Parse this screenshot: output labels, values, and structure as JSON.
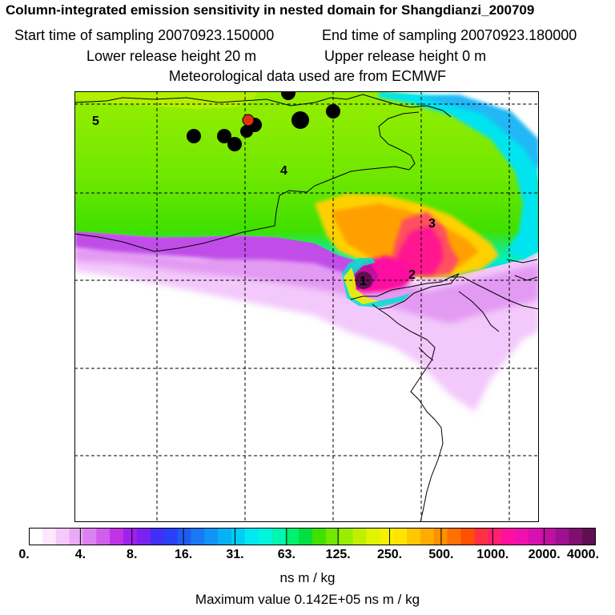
{
  "header": {
    "title": "Column-integrated emission sensitivity in nested domain for Shangdianzi_200709",
    "start_label": "Start time of sampling 20070923.150000",
    "end_label": "End time of sampling 20070923.180000",
    "lower_label": "Lower release height   20 m",
    "upper_label": "Upper release height    0 m",
    "met_label": "Meteorological data used are from ECMWF"
  },
  "map": {
    "region_labels": [
      "1",
      "2",
      "3",
      "4",
      "5"
    ]
  },
  "colorbar": {
    "labels": [
      "0.",
      "4.",
      "8.",
      "16.",
      "31.",
      "63.",
      "125.",
      "250.",
      "500.",
      "1000.",
      "2000.",
      "4000."
    ],
    "colors": [
      "#ffffff",
      "#ffe6ff",
      "#f7c8fb",
      "#eaaaf5",
      "#dc82f0",
      "#cf5eea",
      "#bf33e4",
      "#a020ef",
      "#7b22f0",
      "#4030f5",
      "#2a40f5",
      "#1e5cf5",
      "#1878f5",
      "#1094f5",
      "#08b0f5",
      "#00ccf5",
      "#00e8f0",
      "#00f5e0",
      "#00f5b0",
      "#00f070",
      "#00e040",
      "#40e000",
      "#70e800",
      "#98ee00",
      "#c0f000",
      "#e0f400",
      "#f4f000",
      "#ffe400",
      "#ffc800",
      "#ffac00",
      "#ff9000",
      "#ff7000",
      "#ff5000",
      "#ff3040",
      "#ff2070",
      "#ff10a0",
      "#f010b0",
      "#d810b0",
      "#c010a0",
      "#a01090",
      "#801070",
      "#601050"
    ]
  },
  "units": "ns m / kg",
  "max_value": "Maximum value  0.142E+05 ns m / kg"
}
